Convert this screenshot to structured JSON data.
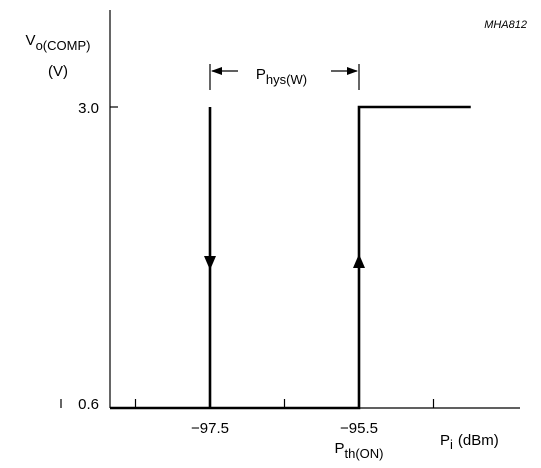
{
  "chart_data": {
    "type": "line",
    "title": "",
    "figure_code": "MHA812",
    "ylabel": {
      "symbol": "V",
      "subscript": "o(COMP)",
      "unit": "(V)"
    },
    "xlabel": {
      "symbol": "P",
      "subscript": "i",
      "unit": "(dBm)"
    },
    "xlim": [
      -100,
      -94
    ],
    "ylim": [
      0.6,
      3.3
    ],
    "x_ticks": [
      -99.5,
      -98.5,
      -97.5,
      -96.5,
      -95.5,
      -94.5
    ],
    "x_tick_labels": [
      {
        "x": -97.5,
        "label": "−97.5"
      },
      {
        "x": -95.5,
        "label": "−95.5"
      }
    ],
    "y_tick_labels": [
      {
        "y": 3.0,
        "label": "3.0"
      },
      {
        "y": 0.6,
        "label": "0.6"
      }
    ],
    "series": [
      {
        "x": [
          -100.0,
          -95.5,
          -95.5,
          -94.0
        ],
        "y": [
          0.6,
          0.6,
          3.0,
          3.0
        ],
        "arrow": "up"
      },
      {
        "x": [
          -97.5,
          -97.5
        ],
        "y": [
          3.0,
          0.6
        ],
        "arrow": "down"
      }
    ],
    "annotations": {
      "hysteresis": {
        "symbol": "P",
        "subscript": "hys(W)",
        "from_x": -97.5,
        "to_x": -95.5,
        "y": 3.35
      },
      "threshold": {
        "symbol": "P",
        "subscript": "th(ON)",
        "x": -95.5
      }
    }
  }
}
